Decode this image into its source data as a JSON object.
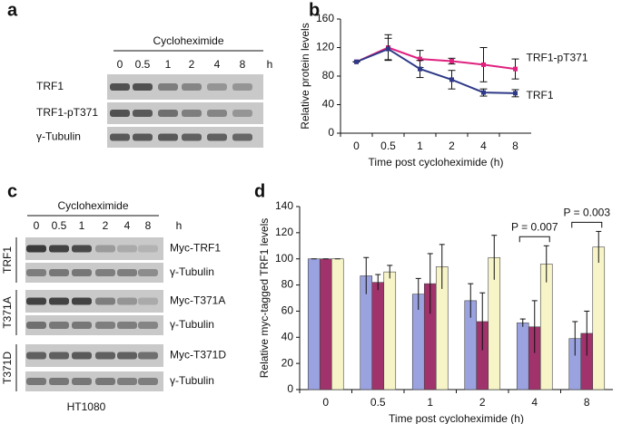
{
  "panels": {
    "a": {
      "label": "a",
      "treatment": "Cycloheximide",
      "lanes": [
        "0",
        "0.5",
        "1",
        "2",
        "4",
        "8"
      ],
      "unit": "h",
      "rows": [
        "TRF1",
        "TRF1-pT371",
        "γ-Tubulin"
      ]
    },
    "c": {
      "label": "c",
      "treatment": "Cycloheximide",
      "lanes": [
        "0",
        "0.5",
        "1",
        "2",
        "4",
        "8"
      ],
      "unit": "h",
      "rows": [
        "Myc-TRF1",
        "γ-Tubulin",
        "Myc-T371A",
        "γ-Tubulin",
        "Myc-T371D",
        "γ-Tubulin"
      ],
      "groups": [
        "TRF1",
        "T371A",
        "T371D"
      ],
      "cell_line": "HT1080"
    }
  },
  "chart_data": [
    {
      "type": "line",
      "panel_label": "b",
      "x_label": "Time post cycloheximide (h)",
      "y_label": "Relative protein levels",
      "categories": [
        "0",
        "0.5",
        "1",
        "2",
        "4",
        "8"
      ],
      "series": [
        {
          "name": "TRF1-pT371",
          "color": "#e0217f",
          "values": [
            100,
            120,
            104,
            101,
            96,
            90
          ],
          "errors": [
            0,
            18,
            12,
            4,
            24,
            14
          ]
        },
        {
          "name": "TRF1",
          "color": "#2e3a87",
          "values": [
            100,
            118,
            90,
            75,
            57,
            56
          ],
          "errors": [
            0,
            15,
            12,
            13,
            5,
            5
          ]
        }
      ],
      "ylim": [
        0,
        160
      ],
      "yticks": [
        0,
        40,
        80,
        120,
        160
      ]
    },
    {
      "type": "bar",
      "panel_label": "d",
      "x_label": "Time post cycloheximide (h)",
      "y_label": "Relative myc-tagged TRF1 levels",
      "categories": [
        "0",
        "0.5",
        "1",
        "2",
        "4",
        "8"
      ],
      "series": [
        {
          "color": "#9aa3e0",
          "values": [
            100,
            87,
            73,
            68,
            51,
            39
          ],
          "errors": [
            0,
            14,
            12,
            13,
            3,
            13
          ]
        },
        {
          "color": "#a0336b",
          "values": [
            100,
            82,
            81,
            52,
            48,
            43
          ],
          "errors": [
            0,
            6,
            23,
            22,
            20,
            17
          ]
        },
        {
          "color": "#f7f5c8",
          "values": [
            100,
            90,
            94,
            101,
            96,
            109
          ],
          "errors": [
            0,
            5,
            17,
            17,
            14,
            12
          ]
        }
      ],
      "annotations": [
        {
          "category": 4,
          "text": "P = 0.007"
        },
        {
          "category": 5,
          "text": "P = 0.003"
        }
      ],
      "ylim": [
        0,
        140
      ],
      "yticks": [
        0,
        20,
        40,
        60,
        80,
        100,
        120,
        140
      ]
    }
  ]
}
